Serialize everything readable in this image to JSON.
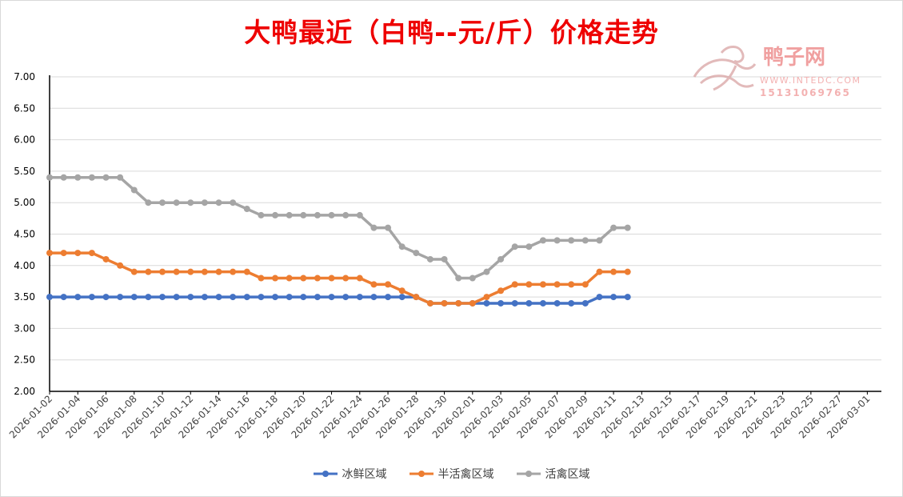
{
  "chart_data": {
    "type": "line",
    "title": "大鸭最近（白鸭--元/斤）价格走势",
    "xlabel": "",
    "ylabel": "",
    "ylim": [
      2.0,
      7.0
    ],
    "y_ticks": [
      "2.00",
      "2.50",
      "3.00",
      "3.50",
      "4.00",
      "4.50",
      "5.00",
      "5.50",
      "6.00",
      "6.50",
      "7.00"
    ],
    "x_ticks": [
      "2026-01-02",
      "2026-01-04",
      "2026-01-06",
      "2026-01-08",
      "2026-01-10",
      "2026-01-12",
      "2026-01-14",
      "2026-01-16",
      "2026-01-18",
      "2026-01-20",
      "2026-01-22",
      "2026-01-24",
      "2026-01-26",
      "2026-01-28",
      "2026-01-30",
      "2026-02-01",
      "2026-02-03",
      "2026-02-05",
      "2026-02-07",
      "2026-02-09",
      "2026-02-11",
      "2026-02-13",
      "2026-02-15",
      "2026-02-17",
      "2026-02-19",
      "2026-02-21",
      "2026-02-23",
      "2026-02-25",
      "2026-02-27",
      "2026-03-01"
    ],
    "x_range": [
      "2026-01-02",
      "2026-03-02"
    ],
    "grid": "horizontal",
    "legend_position": "bottom",
    "x": [
      "2026-01-02",
      "2026-01-03",
      "2026-01-04",
      "2026-01-05",
      "2026-01-06",
      "2026-01-07",
      "2026-01-08",
      "2026-01-09",
      "2026-01-10",
      "2026-01-11",
      "2026-01-12",
      "2026-01-13",
      "2026-01-14",
      "2026-01-15",
      "2026-01-16",
      "2026-01-17",
      "2026-01-18",
      "2026-01-19",
      "2026-01-20",
      "2026-01-21",
      "2026-01-22",
      "2026-01-23",
      "2026-01-24",
      "2026-01-25",
      "2026-01-26",
      "2026-01-27",
      "2026-01-28",
      "2026-01-29",
      "2026-01-30",
      "2026-01-31",
      "2026-02-01",
      "2026-02-02",
      "2026-02-03",
      "2026-02-04",
      "2026-02-05",
      "2026-02-06",
      "2026-02-07",
      "2026-02-08",
      "2026-02-09",
      "2026-02-10",
      "2026-02-11",
      "2026-02-12"
    ],
    "series": [
      {
        "name": "冰鲜区域",
        "color": "#4472c4",
        "values": [
          3.5,
          3.5,
          3.5,
          3.5,
          3.5,
          3.5,
          3.5,
          3.5,
          3.5,
          3.5,
          3.5,
          3.5,
          3.5,
          3.5,
          3.5,
          3.5,
          3.5,
          3.5,
          3.5,
          3.5,
          3.5,
          3.5,
          3.5,
          3.5,
          3.5,
          3.5,
          3.5,
          3.4,
          3.4,
          3.4,
          3.4,
          3.4,
          3.4,
          3.4,
          3.4,
          3.4,
          3.4,
          3.4,
          3.4,
          3.5,
          3.5,
          3.5
        ]
      },
      {
        "name": "半活禽区域",
        "color": "#ed7d31",
        "values": [
          4.2,
          4.2,
          4.2,
          4.2,
          4.1,
          4.0,
          3.9,
          3.9,
          3.9,
          3.9,
          3.9,
          3.9,
          3.9,
          3.9,
          3.9,
          3.8,
          3.8,
          3.8,
          3.8,
          3.8,
          3.8,
          3.8,
          3.8,
          3.7,
          3.7,
          3.6,
          3.5,
          3.4,
          3.4,
          3.4,
          3.4,
          3.5,
          3.6,
          3.7,
          3.7,
          3.7,
          3.7,
          3.7,
          3.7,
          3.9,
          3.9,
          3.9
        ]
      },
      {
        "name": "活禽区域",
        "color": "#a5a5a5",
        "values": [
          5.4,
          5.4,
          5.4,
          5.4,
          5.4,
          5.4,
          5.2,
          5.0,
          5.0,
          5.0,
          5.0,
          5.0,
          5.0,
          5.0,
          4.9,
          4.8,
          4.8,
          4.8,
          4.8,
          4.8,
          4.8,
          4.8,
          4.8,
          4.6,
          4.6,
          4.3,
          4.2,
          4.1,
          4.1,
          3.8,
          3.8,
          3.9,
          4.1,
          4.3,
          4.3,
          4.4,
          4.4,
          4.4,
          4.4,
          4.4,
          4.6,
          4.6
        ]
      }
    ]
  },
  "watermark": {
    "brand": "鸭子网",
    "url": "WWW.INTEDC.COM",
    "phone": "15131069765",
    "color": "#f0a0a0",
    "icon": "duck-logo-icon"
  }
}
